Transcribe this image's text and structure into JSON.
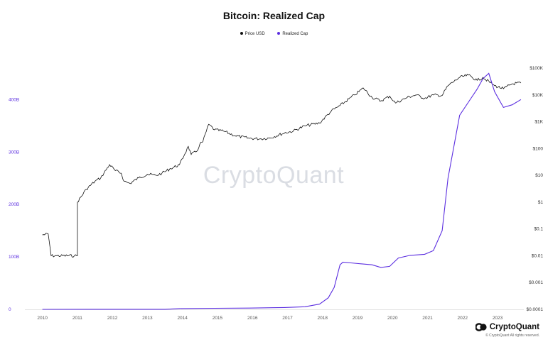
{
  "chart_data": {
    "type": "line",
    "title": "Bitcoin: Realized Cap",
    "legend_position": "top-center",
    "grid": false,
    "x_ticks": [
      "2010",
      "2011",
      "2012",
      "2013",
      "2014",
      "2015",
      "2016",
      "2017",
      "2018",
      "2019",
      "2020",
      "2021",
      "2022",
      "2023"
    ],
    "left_axis": {
      "ticks": [
        "0",
        "100B",
        "200B",
        "300B",
        "400B"
      ],
      "ylim": [
        0,
        460
      ],
      "unit": "B"
    },
    "right_axis": {
      "scale": "log",
      "ticks": [
        "$0.0001",
        "$0.001",
        "$0.01",
        "$0.1",
        "$1",
        "$10",
        "$100",
        "$1K",
        "$10K",
        "$100K"
      ]
    },
    "series": [
      {
        "name": "Price USD",
        "axis": "right",
        "color": "#111111",
        "points": [
          [
            "2010-07",
            0.06
          ],
          [
            "2010-09",
            0.065
          ],
          [
            "2010-10",
            0.01
          ],
          [
            "2010-12",
            0.01
          ],
          [
            "2011-06",
            0.01
          ],
          [
            "2011-07",
            0.01
          ],
          [
            "2011-07",
            1
          ],
          [
            "2011-10",
            3
          ],
          [
            "2012-01",
            6
          ],
          [
            "2012-03",
            8
          ],
          [
            "2012-06",
            25
          ],
          [
            "2012-08",
            15
          ],
          [
            "2012-10",
            12
          ],
          [
            "2012-11",
            6
          ],
          [
            "2013-01",
            5
          ],
          [
            "2013-04",
            8
          ],
          [
            "2013-07",
            11
          ],
          [
            "2013-10",
            10
          ],
          [
            "2013-12",
            12
          ],
          [
            "2014-03",
            18
          ],
          [
            "2014-06",
            25
          ],
          [
            "2014-09",
            120
          ],
          [
            "2014-10",
            60
          ],
          [
            "2014-12",
            80
          ],
          [
            "2015-01",
            150
          ],
          [
            "2015-02",
            180
          ],
          [
            "2015-04",
            800
          ],
          [
            "2015-06",
            500
          ],
          [
            "2015-09",
            450
          ],
          [
            "2016-01",
            300
          ],
          [
            "2016-06",
            240
          ],
          [
            "2016-10",
            230
          ],
          [
            "2017-01",
            250
          ],
          [
            "2017-06",
            380
          ],
          [
            "2017-09",
            450
          ],
          [
            "2018-01",
            700
          ],
          [
            "2018-06",
            900
          ],
          [
            "2018-10",
            2500
          ],
          [
            "2019-01",
            4000
          ],
          [
            "2019-06",
            10000
          ],
          [
            "2019-09",
            18000
          ],
          [
            "2019-12",
            8000
          ],
          [
            "2020-03",
            6000
          ],
          [
            "2020-06",
            9000
          ],
          [
            "2020-08",
            5000
          ],
          [
            "2020-12",
            8000
          ],
          [
            "2021-03",
            10000
          ],
          [
            "2021-06",
            7500
          ],
          [
            "2021-09",
            10000
          ],
          [
            "2021-12",
            9500
          ],
          [
            "2022-02",
            22000
          ],
          [
            "2022-06",
            45000
          ],
          [
            "2022-09",
            55000
          ],
          [
            "2022-12",
            35000
          ],
          [
            "2023-02",
            45000
          ],
          [
            "2023-06",
            22000
          ],
          [
            "2023-09",
            17000
          ],
          [
            "2023-12",
            26000
          ],
          [
            "2024-03",
            28000
          ]
        ]
      },
      {
        "name": "Realized Cap",
        "axis": "left",
        "color": "#5b2ee0",
        "points": [
          [
            "2010-07",
            0
          ],
          [
            "2014-01",
            0.2
          ],
          [
            "2014-06",
            1.5
          ],
          [
            "2015-06",
            2
          ],
          [
            "2016-06",
            2.5
          ],
          [
            "2017-06",
            3.5
          ],
          [
            "2018-01",
            5
          ],
          [
            "2018-06",
            10
          ],
          [
            "2018-09",
            22
          ],
          [
            "2018-11",
            42
          ],
          [
            "2019-01",
            85
          ],
          [
            "2019-02",
            90
          ],
          [
            "2019-06",
            88
          ],
          [
            "2019-12",
            85
          ],
          [
            "2020-03",
            80
          ],
          [
            "2020-06",
            82
          ],
          [
            "2020-09",
            98
          ],
          [
            "2021-01",
            103
          ],
          [
            "2021-06",
            105
          ],
          [
            "2021-09",
            112
          ],
          [
            "2021-12",
            150
          ],
          [
            "2022-02",
            250
          ],
          [
            "2022-06",
            370
          ],
          [
            "2022-09",
            395
          ],
          [
            "2022-12",
            420
          ],
          [
            "2023-02",
            440
          ],
          [
            "2023-04",
            450
          ],
          [
            "2023-06",
            415
          ],
          [
            "2023-09",
            385
          ],
          [
            "2023-12",
            390
          ],
          [
            "2024-03",
            400
          ]
        ]
      }
    ]
  },
  "watermark": "CryptoQuant",
  "footer": {
    "brand": "CryptoQuant",
    "copyright": "© CryptoQuant All rights reserved."
  }
}
